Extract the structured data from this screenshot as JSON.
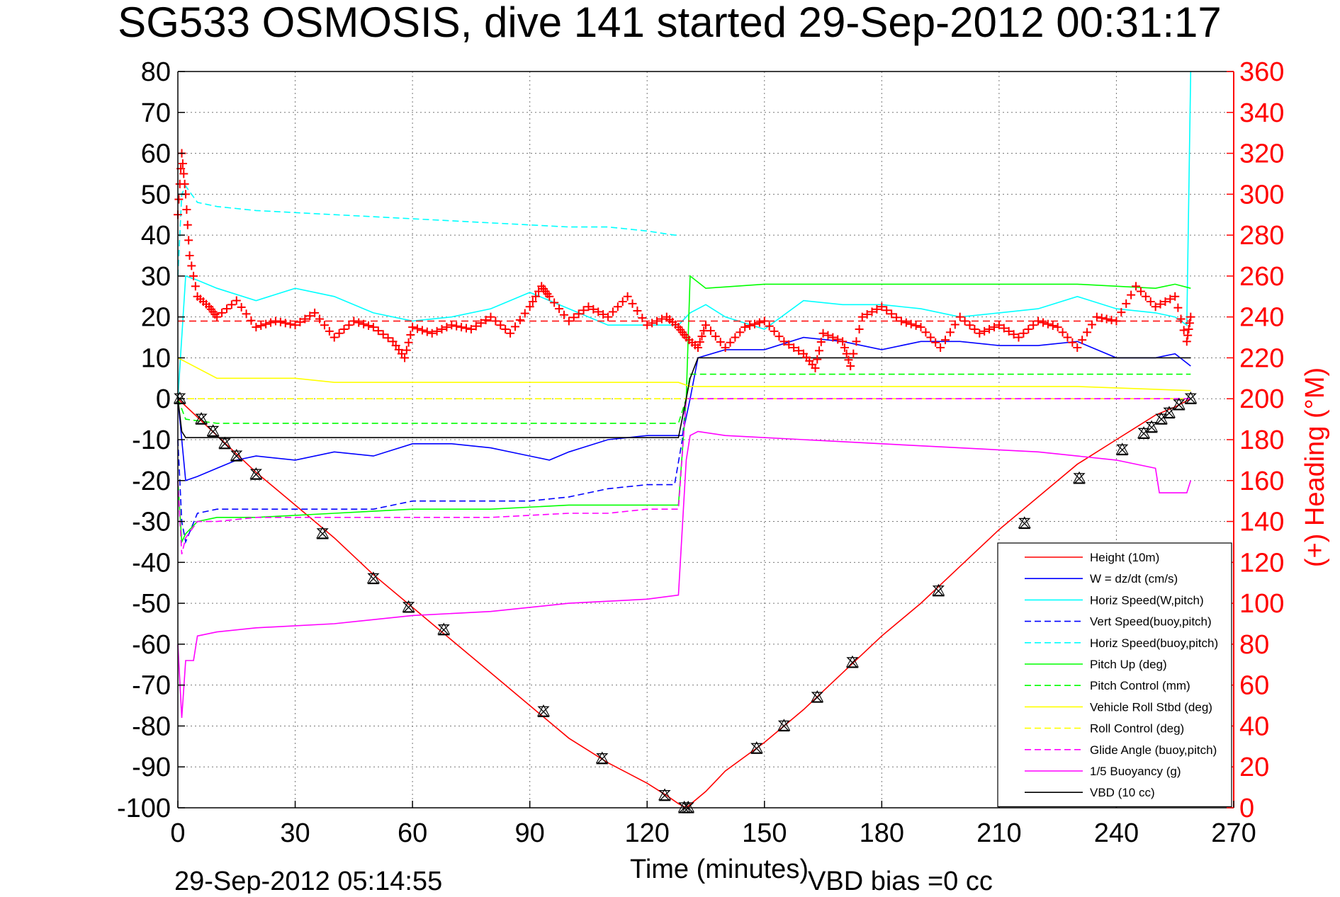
{
  "chart_data": {
    "type": "line",
    "title": "SG533 OSMOSIS, dive 141 started 29-Sep-2012 00:31:17",
    "xlabel": "Time (minutes)",
    "ylabel_right": "(+) Heading (°M)",
    "footer_left": "29-Sep-2012 05:14:55",
    "footer_right": "VBD bias =0 cc",
    "xlim": [
      0,
      270
    ],
    "ylim": [
      -100,
      80
    ],
    "y2lim": [
      0,
      360
    ],
    "x_ticks": [
      0,
      30,
      60,
      90,
      120,
      150,
      180,
      210,
      240,
      270
    ],
    "y_ticks": [
      80,
      70,
      60,
      50,
      40,
      30,
      20,
      10,
      0,
      -10,
      -20,
      -30,
      -40,
      -50,
      -60,
      -70,
      -80,
      -90,
      -100
    ],
    "y2_ticks": [
      360,
      340,
      320,
      300,
      280,
      260,
      240,
      220,
      200,
      180,
      160,
      140,
      120,
      100,
      80,
      60,
      40,
      20,
      0
    ],
    "grid": true,
    "legend_position": "bottom-right",
    "colors": {
      "red": "#ff0000",
      "blue": "#0000ff",
      "cyan": "#00ffff",
      "green": "#00ff00",
      "yellow": "#ffff00",
      "magenta": "#ff00ff",
      "black": "#000000"
    },
    "series": [
      {
        "name": "Height (10m)",
        "color": "#ff0000",
        "dash": "solid",
        "axis": "left",
        "x": [
          0,
          10,
          20,
          30,
          40,
          50,
          60,
          70,
          80,
          90,
          100,
          110,
          120,
          125,
          128,
          130,
          135,
          140,
          150,
          160,
          170,
          180,
          190,
          200,
          210,
          220,
          230,
          240,
          245,
          250,
          255,
          259
        ],
        "y": [
          0,
          -9,
          -18,
          -26,
          -34,
          -43,
          -51,
          -59,
          -67,
          -75,
          -83,
          -89,
          -94,
          -97,
          -99,
          -100,
          -96,
          -91,
          -84,
          -76,
          -67,
          -58,
          -50,
          -41,
          -32,
          -24,
          -16,
          -10,
          -7,
          -4,
          -2,
          0
        ]
      },
      {
        "name": "W = dz/dt (cm/s)",
        "color": "#0000ff",
        "dash": "solid",
        "axis": "left",
        "x": [
          0,
          1,
          2,
          5,
          10,
          15,
          20,
          30,
          40,
          50,
          60,
          70,
          80,
          90,
          95,
          100,
          110,
          120,
          129,
          131,
          133,
          140,
          150,
          160,
          170,
          180,
          190,
          200,
          210,
          220,
          230,
          240,
          250,
          255,
          259
        ],
        "y": [
          0,
          -10,
          -20,
          -19,
          -17,
          -15,
          -14,
          -15,
          -13,
          -14,
          -11,
          -11,
          -12,
          -14,
          -15,
          -13,
          -10,
          -9,
          -9,
          0,
          10,
          12,
          12,
          15,
          14,
          12,
          14,
          14,
          13,
          13,
          14,
          10,
          10,
          11,
          8
        ]
      },
      {
        "name": "Horiz Speed(W,pitch)",
        "color": "#00ffff",
        "dash": "solid",
        "axis": "left",
        "x": [
          0,
          2,
          5,
          10,
          20,
          30,
          40,
          50,
          60,
          70,
          80,
          90,
          100,
          110,
          120,
          128,
          131,
          135,
          140,
          150,
          160,
          170,
          180,
          190,
          200,
          210,
          220,
          230,
          240,
          250,
          255,
          258,
          259
        ],
        "y": [
          0,
          30,
          29,
          27,
          24,
          27,
          25,
          21,
          19,
          20,
          22,
          26,
          22,
          18,
          18,
          18,
          21,
          23,
          20,
          17,
          24,
          23,
          23,
          22,
          20,
          21,
          22,
          25,
          22,
          21,
          20,
          18,
          80
        ]
      },
      {
        "name": "Vert Speed(buoy,pitch)",
        "color": "#0000ff",
        "dash": "dashed",
        "axis": "left",
        "x": [
          0,
          1,
          2,
          5,
          10,
          20,
          30,
          50,
          60,
          80,
          90,
          100,
          110,
          120,
          127,
          129,
          130,
          131,
          259
        ],
        "y": [
          -10,
          -30,
          -35,
          -28,
          -27,
          -27,
          -27,
          -27,
          -25,
          -25,
          -25,
          -24,
          -22,
          -21,
          -21,
          -10,
          0,
          0,
          0
        ]
      },
      {
        "name": "Horiz Speed(buoy,pitch)",
        "color": "#00ffff",
        "dash": "dashed",
        "axis": "left",
        "x": [
          0,
          1,
          2,
          5,
          10,
          20,
          40,
          60,
          80,
          100,
          110,
          120,
          127,
          128
        ],
        "y": [
          30,
          50,
          52,
          48,
          47,
          46,
          45,
          44,
          43,
          42,
          42,
          41,
          40,
          40
        ]
      },
      {
        "name": "Pitch Up (deg)",
        "color": "#00ff00",
        "dash": "solid",
        "axis": "left",
        "x": [
          0,
          1,
          2,
          5,
          10,
          20,
          40,
          60,
          80,
          100,
          120,
          128,
          130,
          131,
          135,
          150,
          170,
          200,
          230,
          250,
          255,
          259
        ],
        "y": [
          -20,
          -35,
          -33,
          -30,
          -29,
          -29,
          -28,
          -27,
          -27,
          -26,
          -26,
          -26,
          0,
          30,
          27,
          28,
          28,
          28,
          28,
          27,
          28,
          27
        ]
      },
      {
        "name": "Pitch Control (mm)",
        "color": "#00ff00",
        "dash": "dashed",
        "axis": "left",
        "x": [
          0,
          2,
          10,
          20,
          40,
          60,
          80,
          100,
          128,
          130,
          131,
          259
        ],
        "y": [
          0,
          -5,
          -6,
          -6,
          -6,
          -6,
          -6,
          -6,
          -6,
          0,
          6,
          6
        ]
      },
      {
        "name": "Vehicle Roll Stbd (deg)",
        "color": "#ffff00",
        "dash": "solid",
        "axis": "left",
        "x": [
          0,
          10,
          20,
          30,
          40,
          60,
          80,
          100,
          128,
          131,
          150,
          170,
          200,
          230,
          259
        ],
        "y": [
          10,
          5,
          5,
          5,
          4,
          4,
          4,
          4,
          4,
          3,
          3,
          3,
          3,
          3,
          2
        ]
      },
      {
        "name": "Roll Control (deg)",
        "color": "#ffff00",
        "dash": "dashed",
        "axis": "left",
        "x": [
          0,
          10,
          40,
          80,
          120,
          128,
          131,
          160,
          200,
          259
        ],
        "y": [
          0,
          0,
          0,
          0,
          0,
          0,
          0,
          0,
          0,
          0
        ]
      },
      {
        "name": "Glide Angle (buoy,pitch)",
        "color": "#ff00ff",
        "dash": "dashed",
        "axis": "left",
        "x": [
          0,
          1,
          2,
          5,
          10,
          20,
          40,
          60,
          80,
          100,
          110,
          120,
          128,
          130,
          131,
          259
        ],
        "y": [
          -20,
          -38,
          -34,
          -30,
          -30,
          -29,
          -29,
          -29,
          -29,
          -28,
          -28,
          -27,
          -27,
          0,
          0,
          0
        ]
      },
      {
        "name": "1/5 Buoyancy (g)",
        "color": "#ff00ff",
        "dash": "solid",
        "axis": "left",
        "x": [
          0,
          1,
          2,
          4,
          5,
          10,
          20,
          40,
          60,
          80,
          100,
          120,
          128,
          130,
          131,
          133,
          140,
          160,
          180,
          200,
          220,
          240,
          250,
          251,
          258,
          259
        ],
        "y": [
          -60,
          -78,
          -64,
          -64,
          -58,
          -57,
          -56,
          -55,
          -53,
          -52,
          -50,
          -49,
          -48,
          -15,
          -9,
          -8,
          -9,
          -10,
          -11,
          -12,
          -13,
          -15,
          -17,
          -23,
          -23,
          -20
        ]
      },
      {
        "name": "VBD (10 cc)",
        "color": "#000000",
        "dash": "solid",
        "axis": "left",
        "x": [
          0,
          1,
          2,
          10,
          40,
          80,
          120,
          128,
          130,
          131,
          133,
          150,
          200,
          240,
          259
        ],
        "y": [
          0,
          -8,
          -9.5,
          -9.5,
          -9.5,
          -9.5,
          -9.5,
          -9.5,
          0,
          5,
          10,
          10,
          10,
          10,
          10
        ]
      }
    ],
    "heading": {
      "name": "(+) Heading (°M)",
      "color": "#ff0000",
      "marker": "+",
      "axis": "right",
      "mean": 238,
      "x": [
        0,
        1,
        2,
        3,
        5,
        8,
        10,
        15,
        20,
        25,
        30,
        35,
        40,
        45,
        50,
        55,
        58,
        60,
        65,
        70,
        75,
        80,
        85,
        90,
        93,
        95,
        100,
        105,
        110,
        115,
        120,
        125,
        128,
        130,
        133,
        135,
        140,
        145,
        150,
        155,
        160,
        163,
        165,
        170,
        172,
        175,
        180,
        185,
        190,
        195,
        200,
        205,
        210,
        215,
        220,
        225,
        230,
        235,
        240,
        245,
        250,
        255,
        258,
        259
      ],
      "y": [
        290,
        320,
        300,
        270,
        250,
        245,
        240,
        248,
        235,
        238,
        236,
        242,
        230,
        238,
        235,
        228,
        220,
        235,
        232,
        236,
        234,
        240,
        232,
        245,
        255,
        250,
        238,
        245,
        240,
        250,
        236,
        240,
        235,
        230,
        225,
        236,
        225,
        235,
        238,
        228,
        222,
        215,
        232,
        228,
        216,
        240,
        245,
        238,
        235,
        225,
        240,
        232,
        236,
        230,
        238,
        235,
        225,
        240,
        238,
        255,
        245,
        250,
        228,
        240
      ]
    },
    "depth_markers": {
      "x": [
        0.5,
        6,
        9,
        12,
        15,
        20,
        37,
        50,
        59,
        68,
        93.5,
        108.5,
        124.5,
        129.5,
        130.5,
        148,
        155,
        163.5,
        172.5,
        194.5,
        216.5,
        230.5,
        241.5,
        247,
        249,
        251.5,
        253.5,
        256,
        259
      ],
      "y": [
        0,
        -5,
        -8,
        -11,
        -14,
        -18.5,
        -33,
        -44,
        -51,
        -56.5,
        -76.5,
        -88,
        -97,
        -100,
        -100,
        -85.5,
        -80,
        -73,
        -64.5,
        -47,
        -30.5,
        -19.5,
        -12.5,
        -8.5,
        -7,
        -5,
        -3.5,
        -1.5,
        0
      ]
    },
    "legend": [
      {
        "label": "Height (10m)",
        "color": "#ff0000",
        "dash": "solid"
      },
      {
        "label": "W = dz/dt (cm/s)",
        "color": "#0000ff",
        "dash": "solid"
      },
      {
        "label": "Horiz Speed(W,pitch)",
        "color": "#00ffff",
        "dash": "solid"
      },
      {
        "label": "Vert Speed(buoy,pitch)",
        "color": "#0000ff",
        "dash": "dashed"
      },
      {
        "label": "Horiz Speed(buoy,pitch)",
        "color": "#00ffff",
        "dash": "dashed"
      },
      {
        "label": "Pitch Up (deg)",
        "color": "#00ff00",
        "dash": "solid"
      },
      {
        "label": "Pitch Control (mm)",
        "color": "#00ff00",
        "dash": "dashed"
      },
      {
        "label": "Vehicle Roll Stbd (deg)",
        "color": "#ffff00",
        "dash": "solid"
      },
      {
        "label": "Roll Control (deg)",
        "color": "#ffff00",
        "dash": "dashed"
      },
      {
        "label": "Glide Angle (buoy,pitch)",
        "color": "#ff00ff",
        "dash": "dashed"
      },
      {
        "label": "1/5 Buoyancy (g)",
        "color": "#ff00ff",
        "dash": "solid"
      },
      {
        "label": "VBD (10 cc)",
        "color": "#000000",
        "dash": "solid"
      }
    ]
  }
}
